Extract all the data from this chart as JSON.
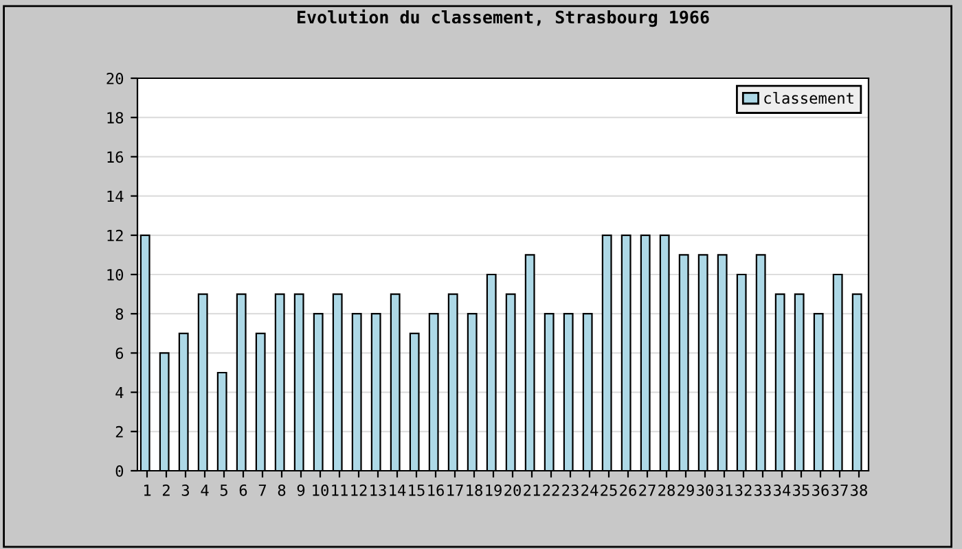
{
  "chart_data": {
    "type": "bar",
    "title": "Evolution du classement, Strasbourg 1966",
    "categories": [
      "1",
      "2",
      "3",
      "4",
      "5",
      "6",
      "7",
      "8",
      "9",
      "10",
      "11",
      "12",
      "13",
      "14",
      "15",
      "16",
      "17",
      "18",
      "19",
      "20",
      "21",
      "22",
      "23",
      "24",
      "25",
      "26",
      "27",
      "28",
      "29",
      "30",
      "31",
      "32",
      "33",
      "34",
      "35",
      "36",
      "37",
      "38"
    ],
    "series": [
      {
        "name": "classement",
        "color": "#add8e6",
        "values": [
          12,
          6,
          7,
          9,
          5,
          9,
          7,
          9,
          9,
          8,
          9,
          8,
          8,
          9,
          7,
          8,
          9,
          8,
          10,
          9,
          11,
          8,
          8,
          8,
          12,
          12,
          12,
          12,
          11,
          11,
          11,
          10,
          11,
          9,
          9,
          8,
          10,
          9
        ]
      }
    ],
    "ylim": [
      0,
      20
    ],
    "yticks": [
      0,
      2,
      4,
      6,
      8,
      10,
      12,
      14,
      16,
      18,
      20
    ],
    "grid": "y",
    "legend": "top right"
  }
}
